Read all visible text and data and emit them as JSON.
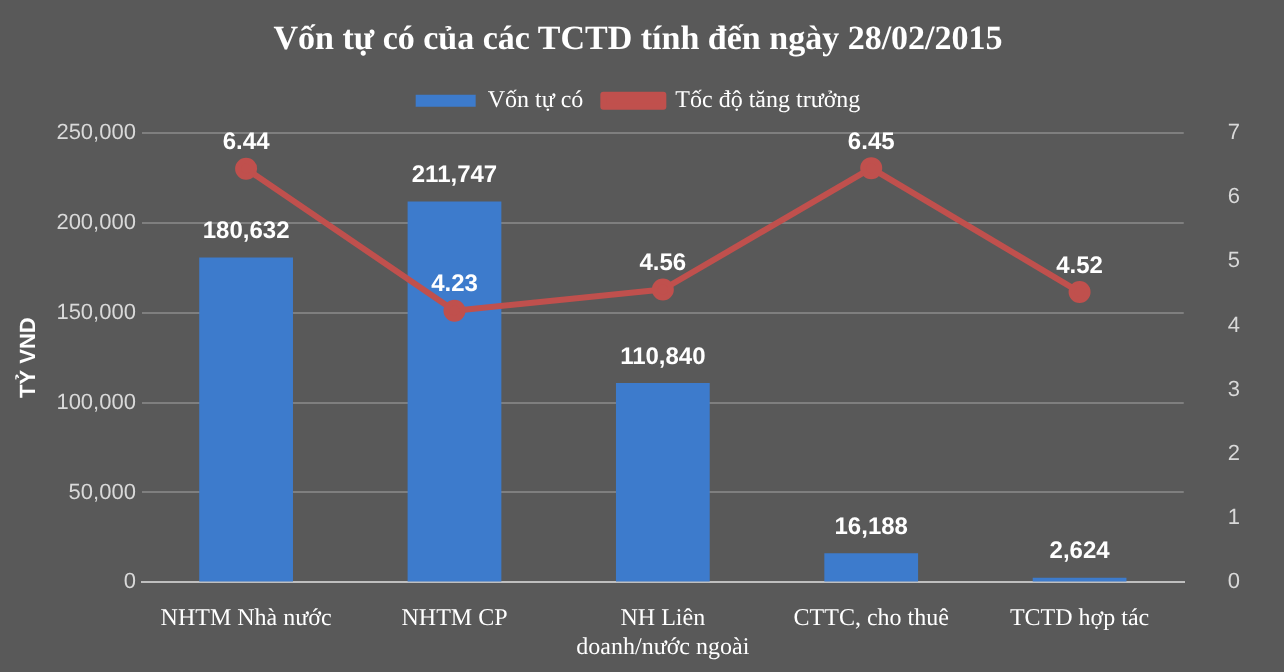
{
  "chart_data": {
    "type": "bar",
    "title": "Vốn tự có của các TCTD tính đến ngày 28/02/2015",
    "ylabel": "TỶ VND",
    "categories": [
      "NHTM Nhà nước",
      "NHTM CP",
      "NH Liên doanh/nước ngoài",
      "CTTC, cho thuê",
      "TCTD hợp tác"
    ],
    "series": [
      {
        "name": "Vốn tự có",
        "color": "#3d7bcc",
        "values": [
          180632,
          211747,
          110840,
          16188,
          2624
        ],
        "value_labels": [
          "180,632",
          "211,747",
          "110,840",
          "16,188",
          "2,624"
        ]
      },
      {
        "name": "Tốc độ tăng trưởng",
        "type": "line",
        "axis": "y2",
        "color": "#c0504d",
        "values": [
          6.44,
          4.23,
          4.56,
          6.45,
          4.52
        ],
        "value_labels": [
          "6.44",
          "4.23",
          "4.56",
          "6.45",
          "4.52"
        ]
      }
    ],
    "ylim": [
      0,
      250000
    ],
    "yticks": [
      0,
      {
        "value": 50000,
        "label": "50,000"
      },
      {
        "value": 100000,
        "label": "100,000"
      },
      {
        "value": 150000,
        "label": "150,000"
      },
      {
        "value": 200000,
        "label": "200,000"
      },
      {
        "value": 250000,
        "label": "250,000"
      }
    ],
    "y2lim": [
      0,
      7
    ],
    "y2ticks": [
      0,
      1,
      2,
      3,
      4,
      5,
      6,
      7
    ],
    "grid": "y",
    "legend": "top",
    "marker": "circle"
  }
}
